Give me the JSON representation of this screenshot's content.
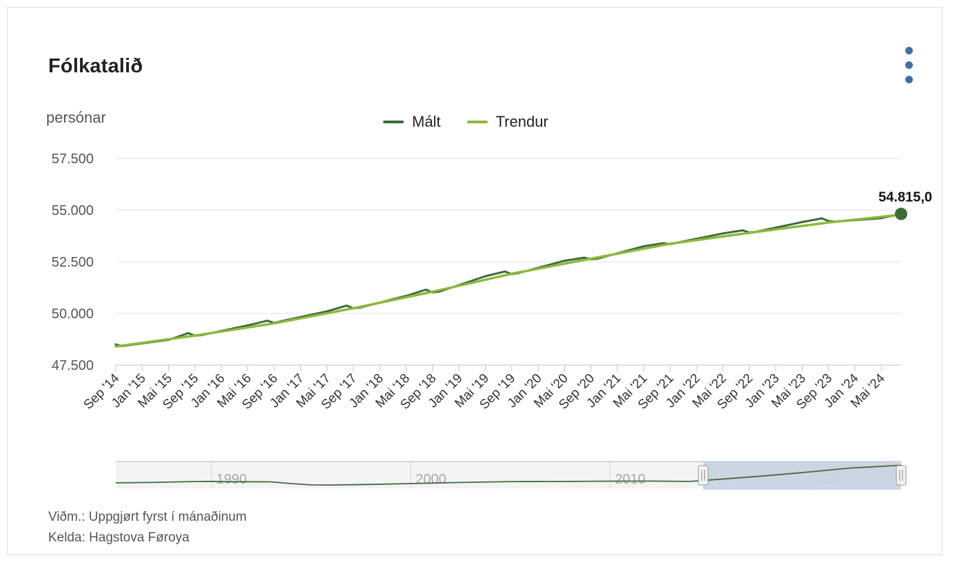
{
  "title": "Fólkatalið",
  "unit_label": "persónar",
  "notes": {
    "note": "Viðm.: Uppgjørt fyrst í mánaðinum",
    "source": "Kelda: Hagstova Føroya"
  },
  "legend": {
    "measured": "Mált",
    "trend": "Trendur"
  },
  "colors": {
    "measured": "#3d6b3a",
    "trend": "#8cb83d",
    "grid": "#e0e0e0",
    "navigator_mask": "#c9d3e3",
    "menu": "#3f6fa8"
  },
  "last_value_label": "54.815,0",
  "chart_data": {
    "type": "line",
    "title": "Fólkatalið",
    "ylabel": "persónar",
    "xlabel": "",
    "ylim": [
      47500,
      57500
    ],
    "yticks": [
      "47.500",
      "50.000",
      "52.500",
      "55.000",
      "57.500"
    ],
    "ytick_values": [
      47500,
      50000,
      52500,
      55000,
      57500
    ],
    "x_start": "2014-09",
    "x_end": "2024-08",
    "xticks": [
      "Sep '14",
      "Jan '15",
      "Mai '15",
      "Sep '15",
      "Jan '16",
      "Mai '16",
      "Sep '16",
      "Jan '17",
      "Mai '17",
      "Sep '17",
      "Jan '18",
      "Mai '18",
      "Sep '18",
      "Jan '19",
      "Mai '19",
      "Sep '19",
      "Jan '20",
      "Mai '20",
      "Sep '20",
      "Jan '21",
      "Mai '21",
      "Sep '21",
      "Jan '22",
      "Mai '22",
      "Sep '22",
      "Jan '23",
      "Mai '23",
      "Sep '23",
      "Jan '24",
      "Mai '24"
    ],
    "series": [
      {
        "name": "Mált",
        "x": [
          "2014-09",
          "2014-10",
          "2015-01",
          "2015-05",
          "2015-08",
          "2015-09",
          "2015-10",
          "2016-05",
          "2016-08",
          "2016-09",
          "2016-10",
          "2017-05",
          "2017-08",
          "2017-09",
          "2017-10",
          "2018-05",
          "2018-08",
          "2018-09",
          "2018-10",
          "2019-05",
          "2019-08",
          "2019-09",
          "2019-10",
          "2020-05",
          "2020-08",
          "2020-09",
          "2020-10",
          "2021-05",
          "2021-08",
          "2021-09",
          "2021-10",
          "2022-05",
          "2022-08",
          "2022-09",
          "2022-10",
          "2023-05",
          "2023-08",
          "2023-09",
          "2023-10",
          "2024-05",
          "2024-08"
        ],
        "values": [
          48500,
          48420,
          48550,
          48720,
          49050,
          48920,
          48950,
          49420,
          49650,
          49540,
          49620,
          50100,
          50380,
          50250,
          50280,
          50850,
          51150,
          51020,
          51050,
          51800,
          52030,
          51900,
          51950,
          52550,
          52700,
          52620,
          52650,
          53250,
          53400,
          53350,
          53420,
          53870,
          54020,
          53920,
          53950,
          54420,
          54600,
          54470,
          54440,
          54610,
          54815
        ]
      },
      {
        "name": "Trendur",
        "x": [
          "2014-09",
          "2015-09",
          "2016-09",
          "2017-09",
          "2018-09",
          "2019-09",
          "2020-09",
          "2021-09",
          "2022-09",
          "2023-09",
          "2024-08"
        ],
        "values": [
          48400,
          48930,
          49520,
          50250,
          51050,
          51920,
          52650,
          53370,
          53900,
          54400,
          54780
        ]
      }
    ]
  },
  "navigator": {
    "year_labels": [
      "1990",
      "2000",
      "2010",
      "2020"
    ],
    "year_values": [
      1990,
      2000,
      2010,
      2020
    ],
    "range_years": [
      1985.2,
      2024.6
    ],
    "selected_years": [
      2014.67,
      2024.6
    ],
    "overview": {
      "x": [
        1985.2,
        1987,
        1989,
        1990,
        1991,
        1993,
        1994,
        1995,
        1996,
        1997,
        1998,
        2000,
        2002,
        2005,
        2008,
        2010,
        2012,
        2014,
        2016,
        2018,
        2020,
        2022,
        2024.6
      ],
      "y": [
        47900,
        48050,
        48400,
        48480,
        48350,
        48300,
        47600,
        47100,
        47050,
        47150,
        47300,
        47600,
        48000,
        48400,
        48450,
        48550,
        48600,
        48450,
        49600,
        50800,
        52200,
        53700,
        54815
      ]
    }
  }
}
